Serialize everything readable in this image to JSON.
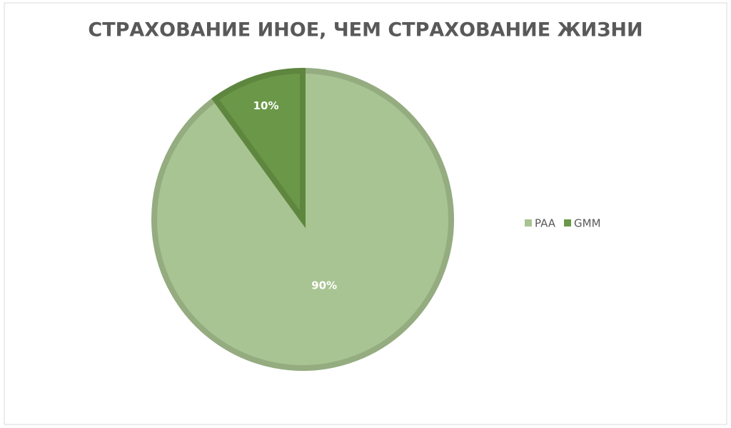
{
  "chart_data": {
    "type": "pie",
    "title": "СТРАХОВАНИЕ ИНОЕ, ЧЕМ СТРАХОВАНИЕ ЖИЗНИ",
    "categories": [
      "PAA",
      "GMM"
    ],
    "values": [
      90,
      10
    ],
    "value_labels": [
      "90%",
      "10%"
    ],
    "colors": [
      "#a8c492",
      "#6b9848"
    ],
    "legend": "right"
  }
}
